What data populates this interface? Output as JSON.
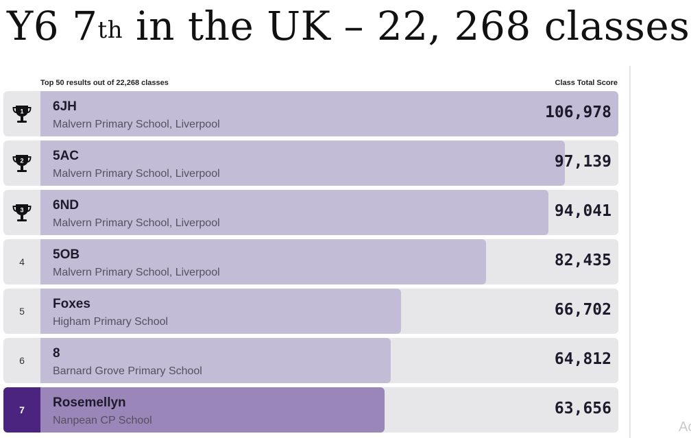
{
  "title": {
    "main": "Y6 7",
    "sup": "th",
    "rest": " in the UK – 22, 268 classes"
  },
  "leaderboard": {
    "header_left": "Top 50 results out of 22,268 classes",
    "header_right": "Class Total Score",
    "rows": [
      {
        "rank": "1",
        "name": "6JH",
        "school": "Malvern Primary School, Liverpool",
        "score": "106,978",
        "icon": "trophy-icon",
        "fill": 1.0
      },
      {
        "rank": "2",
        "name": "5AC",
        "school": "Malvern Primary School, Liverpool",
        "score": "97,139",
        "icon": "trophy-icon",
        "fill": 0.908
      },
      {
        "rank": "3",
        "name": "6ND",
        "school": "Malvern Primary School, Liverpool",
        "score": "94,041",
        "icon": "trophy-icon",
        "fill": 0.879
      },
      {
        "rank": "4",
        "name": "5OB",
        "school": "Malvern Primary School, Liverpool",
        "score": "82,435",
        "fill": 0.771
      },
      {
        "rank": "5",
        "name": "Foxes",
        "school": "Higham Primary School",
        "score": "66,702",
        "fill": 0.624
      },
      {
        "rank": "6",
        "name": "8",
        "school": "Barnard Grove Primary School",
        "score": "64,812",
        "fill": 0.606
      },
      {
        "rank": "7",
        "name": "Rosemellyn",
        "school": "Nanpean CP School",
        "score": "63,656",
        "fill": 0.595,
        "highlighted": true
      }
    ]
  },
  "colors": {
    "highlight": "#4b2480",
    "bar": "#c3bcd7",
    "bar_highlight": "#9b86ba",
    "row_bg": "#e7e7ea"
  },
  "corner_text": "Ac"
}
